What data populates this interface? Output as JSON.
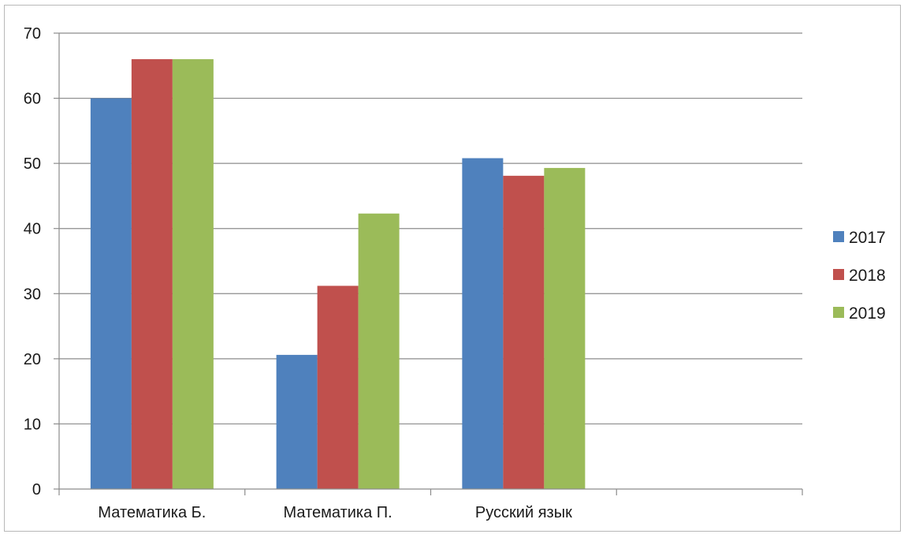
{
  "chart_data": {
    "type": "bar",
    "categories": [
      "Математика Б.",
      "Математика П.",
      "Русский язык",
      ""
    ],
    "series": [
      {
        "name": "2017",
        "color": "#4F81BD",
        "values": [
          60,
          20.6,
          50.8,
          null
        ]
      },
      {
        "name": "2018",
        "color": "#C0504D",
        "values": [
          66,
          31.2,
          48.1,
          null
        ]
      },
      {
        "name": "2019",
        "color": "#9BBB59",
        "values": [
          66,
          42.3,
          49.3,
          null
        ]
      }
    ],
    "ylim": [
      0,
      70
    ],
    "yticks": [
      0,
      10,
      20,
      30,
      40,
      50,
      60,
      70
    ],
    "grid": true,
    "legend": "right",
    "title": "",
    "xlabel": "",
    "ylabel": ""
  }
}
